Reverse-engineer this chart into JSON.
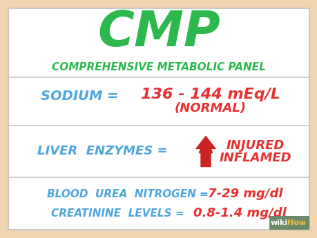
{
  "bg_outer": "#f0d5b0",
  "bg_inner": "#ffffff",
  "title_text": "CMP",
  "title_color": "#2db84d",
  "subtitle_text": "COMPREHENSIVE METABOLIC PANEL",
  "subtitle_color": "#2db84d",
  "row1_label": "SODIUM =",
  "row1_label_color": "#4da6e0",
  "row1_value": "136 - 144 mEq/L",
  "row1_sub": "(NORMAL)",
  "row1_value_color": "#e83030",
  "row2_label": "LIVER  ENZYMES =",
  "row2_label_color": "#4da6e0",
  "row2_arrow_color": "#cc2222",
  "row2_note1": "INJURED",
  "row2_note2": "INFLAMED",
  "row2_note_color": "#e83030",
  "row3_line1_label": "BLOOD  UREA  NITROGEN =",
  "row3_line1_value": "7-29 mg/dl",
  "row3_line2_label": "CREATININE  LEVELS =",
  "row3_line2_value": "0.8-1.4 mg/dl",
  "row3_label_color": "#4da6e0",
  "row3_value_color": "#e83030",
  "border_color": "#c8c8c8",
  "wikihow_bg": "#6b8a6b",
  "wikihow_text": "wikiHow",
  "wikihow_wiki_color": "#ffffff",
  "wikihow_how_color": "#f0c040"
}
